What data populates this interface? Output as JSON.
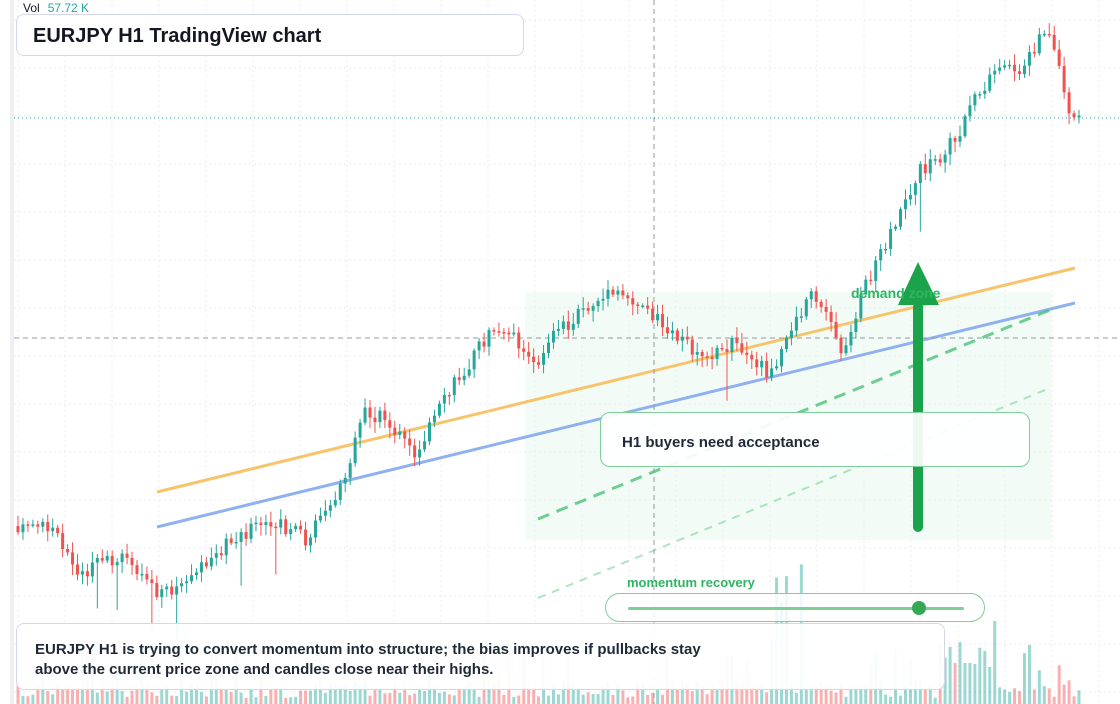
{
  "header": {
    "vol_label": "Vol",
    "vol_value": "57.72 K"
  },
  "title": "EURJPY H1 TradingView chart",
  "annotations": {
    "buyers_note": "H1 buyers need acceptance",
    "demand_label": "demand zone",
    "momentum_label": "momentum recovery",
    "momentum_level": 0.87
  },
  "summary": "EURJPY H1 is trying to convert momentum into structure; the bias improves if pullbacks stay above the current price zone and candles close near their highs.",
  "colors": {
    "up": "#26a69a",
    "down": "#ef5350",
    "ma_fast": "#f7c46c",
    "ma_slow": "#8fb1f0",
    "accent_green": "#2eb562",
    "arrow": "#1aa34a"
  },
  "icons": {
    "arrow": "arrow-up-icon"
  },
  "chart_data": {
    "type": "candlestick",
    "instrument": "EURJPY",
    "timeframe": "H1",
    "waypoints": [
      {
        "i": 0,
        "p": 526
      },
      {
        "i": 8,
        "p": 530
      },
      {
        "i": 12,
        "p": 582
      },
      {
        "i": 16,
        "p": 566
      },
      {
        "i": 22,
        "p": 558
      },
      {
        "i": 28,
        "p": 590
      },
      {
        "i": 33,
        "p": 588
      },
      {
        "i": 40,
        "p": 552
      },
      {
        "i": 46,
        "p": 532
      },
      {
        "i": 52,
        "p": 520
      },
      {
        "i": 58,
        "p": 540
      },
      {
        "i": 62,
        "p": 515
      },
      {
        "i": 66,
        "p": 480
      },
      {
        "i": 70,
        "p": 410
      },
      {
        "i": 74,
        "p": 420
      },
      {
        "i": 80,
        "p": 455
      },
      {
        "i": 84,
        "p": 420
      },
      {
        "i": 88,
        "p": 385
      },
      {
        "i": 92,
        "p": 355
      },
      {
        "i": 96,
        "p": 330
      },
      {
        "i": 100,
        "p": 340
      },
      {
        "i": 104,
        "p": 368
      },
      {
        "i": 108,
        "p": 335
      },
      {
        "i": 112,
        "p": 320
      },
      {
        "i": 116,
        "p": 305
      },
      {
        "i": 120,
        "p": 295
      },
      {
        "i": 124,
        "p": 300
      },
      {
        "i": 128,
        "p": 315
      },
      {
        "i": 132,
        "p": 330
      },
      {
        "i": 136,
        "p": 350
      },
      {
        "i": 140,
        "p": 356
      },
      {
        "i": 144,
        "p": 345
      },
      {
        "i": 148,
        "p": 360
      },
      {
        "i": 152,
        "p": 375
      },
      {
        "i": 156,
        "p": 330
      },
      {
        "i": 160,
        "p": 298
      },
      {
        "i": 164,
        "p": 318
      },
      {
        "i": 166,
        "p": 350
      },
      {
        "i": 170,
        "p": 300
      },
      {
        "i": 173,
        "p": 260
      },
      {
        "i": 178,
        "p": 215
      },
      {
        "i": 182,
        "p": 170
      },
      {
        "i": 186,
        "p": 160
      },
      {
        "i": 190,
        "p": 130
      },
      {
        "i": 194,
        "p": 90
      },
      {
        "i": 198,
        "p": 65
      },
      {
        "i": 202,
        "p": 78
      },
      {
        "i": 206,
        "p": 40
      },
      {
        "i": 208,
        "p": 35
      },
      {
        "i": 210,
        "p": 65
      },
      {
        "i": 212,
        "p": 115
      },
      {
        "i": 214,
        "p": 120
      }
    ]
  }
}
